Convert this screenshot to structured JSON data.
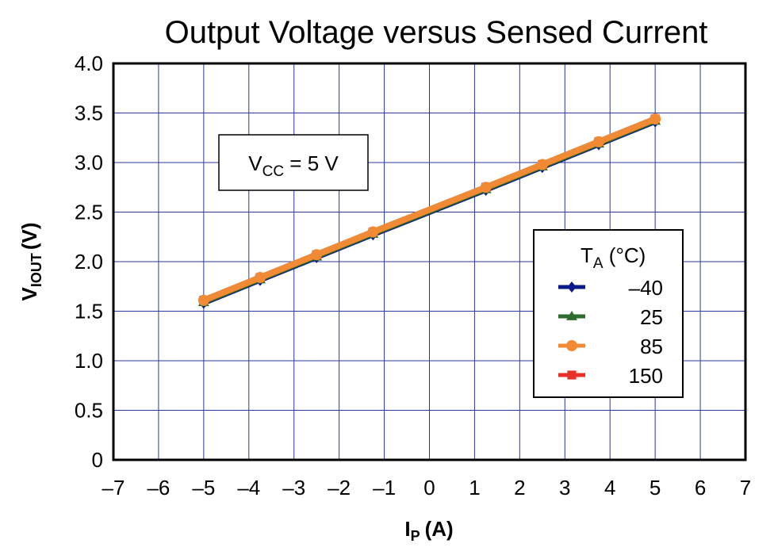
{
  "chart_data": {
    "type": "line",
    "title": "Output Voltage versus Sensed Current",
    "xlabel": "I",
    "xlabel_sub": "P",
    "xlabel_unit": "(A)",
    "ylabel": "V",
    "ylabel_sub": "IOUT",
    "ylabel_unit": "(V)",
    "xlim": [
      -7,
      7
    ],
    "ylim": [
      0,
      4.0
    ],
    "grid": true,
    "xticks": [
      "–7",
      "–6",
      "–5",
      "–4",
      "–3",
      "–2",
      "–1",
      "0",
      "1",
      "2",
      "3",
      "4",
      "5",
      "6",
      "7"
    ],
    "yticks": [
      "0",
      "0.5",
      "1.0",
      "1.5",
      "2.0",
      "2.5",
      "3.0",
      "3.5",
      "4.0"
    ],
    "annotation": {
      "main": "V",
      "sub": "CC",
      "rest": " = 5 V"
    },
    "legend": {
      "title_main": "T",
      "title_sub": "A",
      "title_rest": " (°C)",
      "placement": "right"
    },
    "x": [
      -5,
      -3.75,
      -2.5,
      -1.25,
      1.25,
      2.5,
      3.75,
      5
    ],
    "series": [
      {
        "name": "–40",
        "color": "#0a1a8a",
        "marker": "diamond",
        "values": [
          1.58,
          1.81,
          2.04,
          2.27,
          2.72,
          2.95,
          3.18,
          3.41
        ]
      },
      {
        "name": "25",
        "color": "#2e6b2e",
        "marker": "triangle",
        "values": [
          1.59,
          1.82,
          2.05,
          2.28,
          2.73,
          2.96,
          3.19,
          3.42
        ]
      },
      {
        "name": "150",
        "color": "#e8302a",
        "marker": "square",
        "values": [
          1.61,
          1.84,
          2.07,
          2.3,
          2.75,
          2.98,
          3.21,
          3.44
        ]
      },
      {
        "name": "85",
        "color": "#f08a35",
        "marker": "circle",
        "values": [
          1.61,
          1.84,
          2.07,
          2.3,
          2.75,
          2.98,
          3.21,
          3.44
        ]
      }
    ],
    "legend_order": [
      "–40",
      "25",
      "85",
      "150"
    ]
  }
}
